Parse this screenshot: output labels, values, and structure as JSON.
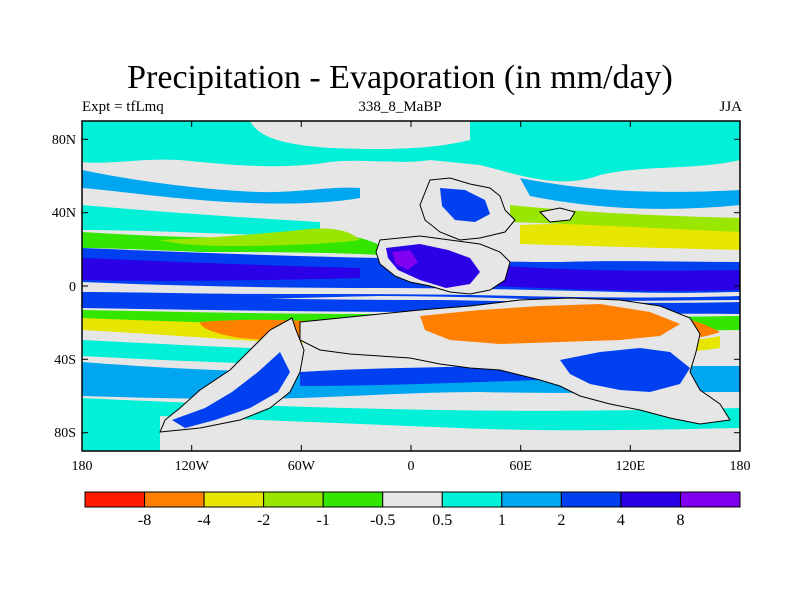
{
  "title": "Precipitation - Evaporation (in mm/day)",
  "subtitle_left": "Expt = tfLmq",
  "subtitle_center": "338_8_MaBP",
  "subtitle_right": "JJA",
  "map": {
    "projection": "cylindrical-equidistant",
    "lon_range": [
      -180,
      180
    ],
    "lat_range": [
      -90,
      90
    ],
    "x_ticks": [
      "180",
      "120W",
      "60W",
      "0",
      "60E",
      "120E",
      "180"
    ],
    "y_ticks": [
      "80N",
      "40N",
      "0",
      "40S",
      "80S"
    ]
  },
  "colorbar": {
    "labels": [
      "-8",
      "-4",
      "-2",
      "-1",
      "-0.5",
      "0.5",
      "1",
      "2",
      "4",
      "8"
    ],
    "colors": [
      "#ff1a00",
      "#ff8000",
      "#e6e600",
      "#99e600",
      "#33e600",
      "#e6e6e6",
      "#00f0d8",
      "#00a6f0",
      "#0040f0",
      "#2b00e6",
      "#8000f0"
    ]
  }
}
